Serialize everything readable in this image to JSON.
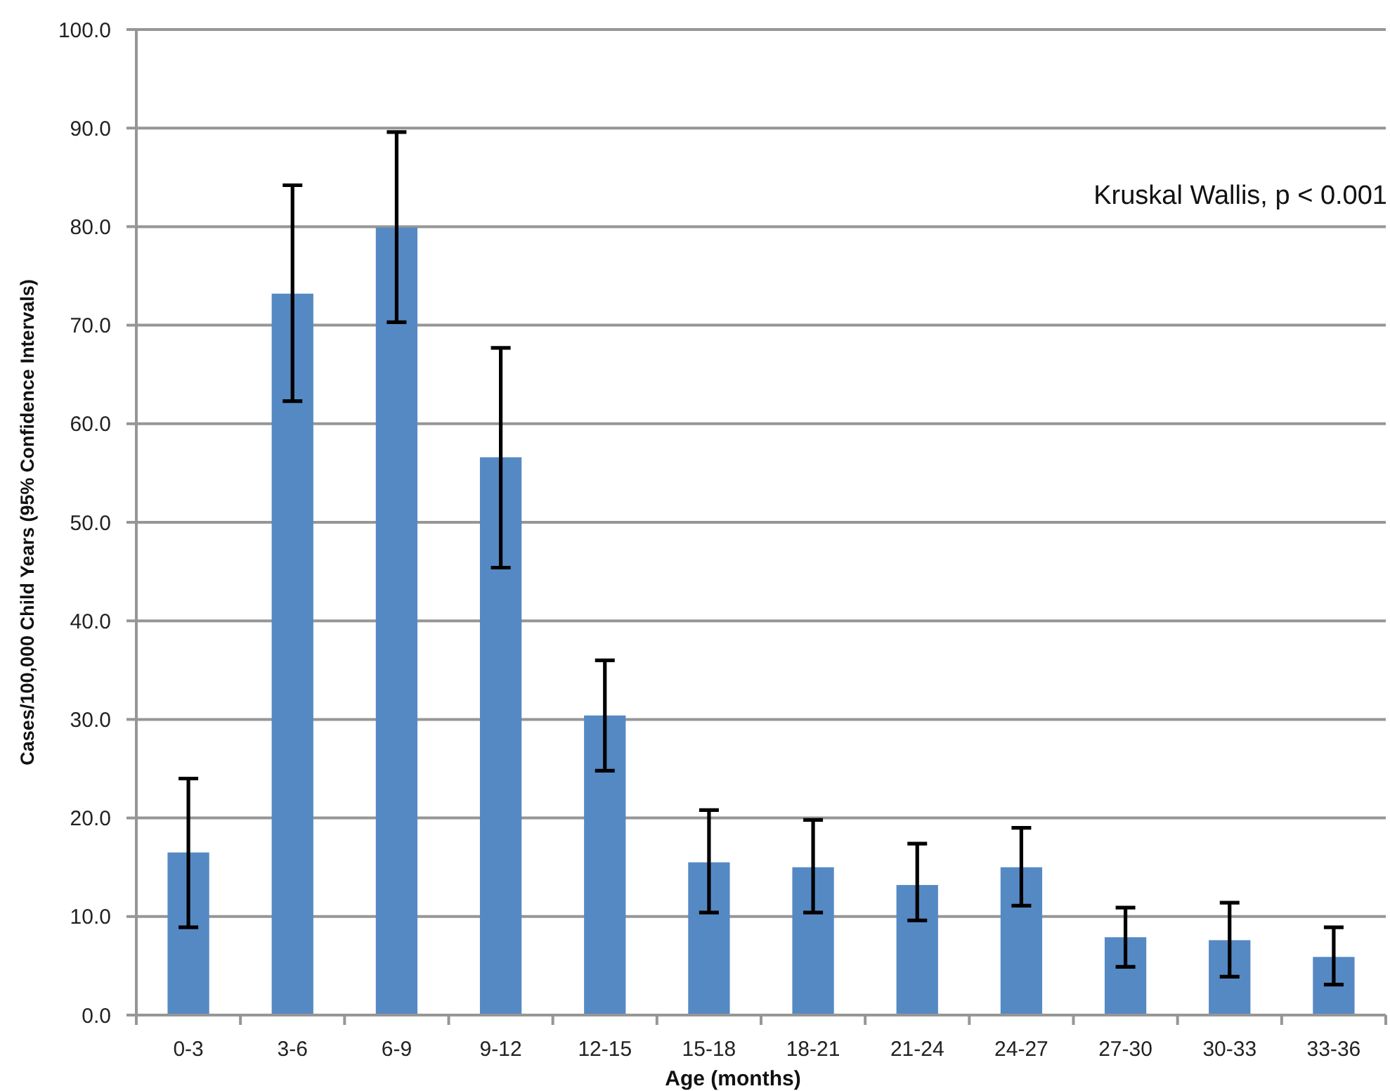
{
  "chart_data": {
    "type": "bar",
    "xlabel": "Age (months)",
    "ylabel": "Cases/100,000 Child Years (95% Confidence Intervals)",
    "annotations": [
      "Kruskal Wallis, p < 0.001"
    ],
    "categories": [
      "0-3",
      "3-6",
      "6-9",
      "9-12",
      "12-15",
      "15-18",
      "18-21",
      "21-24",
      "24-27",
      "27-30",
      "30-33",
      "33-36"
    ],
    "values": [
      16.5,
      73.2,
      79.9,
      56.6,
      30.4,
      15.5,
      15.0,
      13.2,
      15.0,
      7.9,
      7.6,
      5.9
    ],
    "errors": [
      [
        8.9,
        24.0
      ],
      [
        62.3,
        84.2
      ],
      [
        70.3,
        89.6
      ],
      [
        45.4,
        67.7
      ],
      [
        24.8,
        36.0
      ],
      [
        10.4,
        20.8
      ],
      [
        10.4,
        19.8
      ],
      [
        9.6,
        17.4
      ],
      [
        11.1,
        19.0
      ],
      [
        4.9,
        10.9
      ],
      [
        3.9,
        11.4
      ],
      [
        3.1,
        8.9
      ]
    ],
    "color": "#5589c4",
    "ylim": [
      0,
      100
    ],
    "yticks": [
      {
        "value": 0,
        "label": "0.0"
      },
      {
        "value": 10,
        "label": "10.0"
      },
      {
        "value": 20,
        "label": "20.0"
      },
      {
        "value": 30,
        "label": "30.0"
      },
      {
        "value": 40,
        "label": "40.0"
      },
      {
        "value": 50,
        "label": "50.0"
      },
      {
        "value": 60,
        "label": "60.0"
      },
      {
        "value": 70,
        "label": "70.0"
      },
      {
        "value": 80,
        "label": "80.0"
      },
      {
        "value": 90,
        "label": "90.0"
      },
      {
        "value": 100,
        "label": "100.0"
      }
    ],
    "grid": "y"
  }
}
